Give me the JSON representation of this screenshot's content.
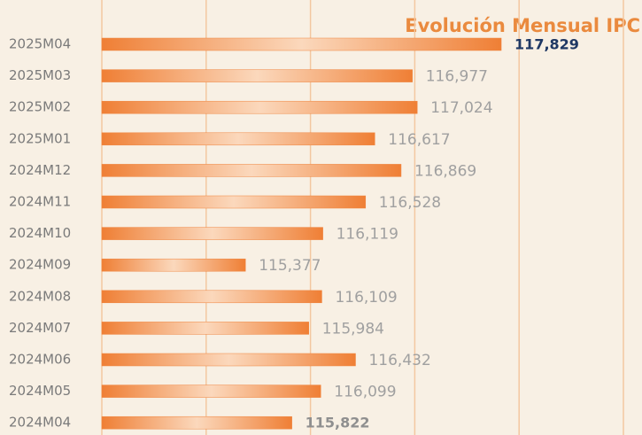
{
  "chart_data": {
    "type": "bar",
    "orientation": "horizontal",
    "title": "Evolución Mensual IPC",
    "categories": [
      "2025M04",
      "2025M03",
      "2025M02",
      "2025M01",
      "2024M12",
      "2024M11",
      "2024M10",
      "2024M09",
      "2024M08",
      "2024M07",
      "2024M06",
      "2024M05",
      "2024M04"
    ],
    "values": [
      117.829,
      116.977,
      117.024,
      116.617,
      116.869,
      116.528,
      116.119,
      115.377,
      116.109,
      115.984,
      116.432,
      116.099,
      115.822
    ],
    "value_labels": [
      "117,829",
      "116,977",
      "117,024",
      "116,617",
      "116,869",
      "116,528",
      "116,119",
      "115,377",
      "116,109",
      "115,984",
      "116,432",
      "116,099",
      "115,822"
    ],
    "color": "#ef8540",
    "xlim": [
      114,
      119
    ],
    "xticks": [
      115,
      116,
      117,
      118,
      119
    ],
    "grid": true
  }
}
